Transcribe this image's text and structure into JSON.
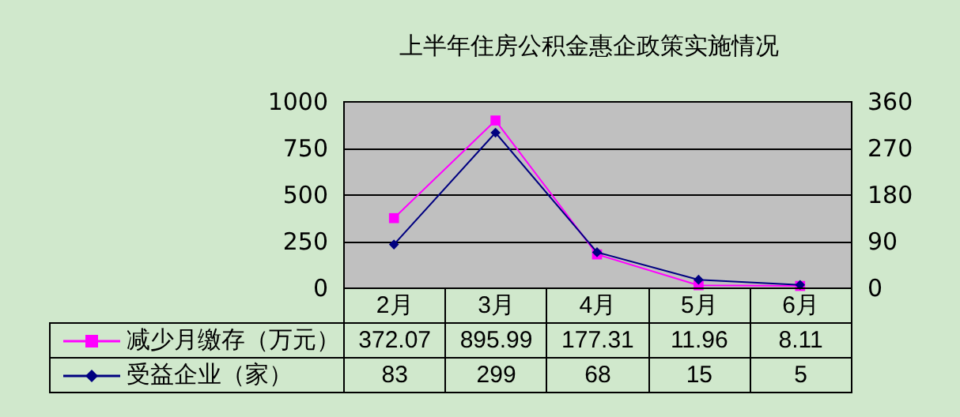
{
  "chart_data": {
    "type": "line",
    "title": "上半年住房公积金惠企政策实施情况",
    "categories": [
      "2月",
      "3月",
      "4月",
      "5月",
      "6月"
    ],
    "series": [
      {
        "name": "减少月缴存（万元）",
        "color": "#ff00ff",
        "marker": "square",
        "values": [
          372.07,
          895.99,
          177.31,
          11.96,
          8.11
        ]
      },
      {
        "name": "受益企业（家）",
        "color": "#000080",
        "marker": "diamond",
        "axis": "y2",
        "values": [
          83,
          299,
          68,
          15,
          5
        ]
      }
    ],
    "ylim": [
      0,
      1000
    ],
    "yticks": [
      0,
      250,
      500,
      750,
      1000
    ],
    "y2lim": [
      0,
      360
    ],
    "y2ticks": [
      0,
      90,
      180,
      270,
      360
    ],
    "grid": "y",
    "legend": "bottom",
    "data_labels": true
  }
}
